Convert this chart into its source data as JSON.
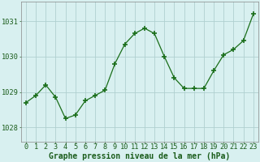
{
  "hours": [
    0,
    1,
    2,
    3,
    4,
    5,
    6,
    7,
    8,
    9,
    10,
    11,
    12,
    13,
    14,
    15,
    16,
    17,
    18,
    19,
    20,
    21,
    22,
    23
  ],
  "pressure": [
    1028.7,
    1028.9,
    1029.2,
    1028.85,
    1028.25,
    1028.35,
    1028.75,
    1028.9,
    1029.05,
    1029.8,
    1030.35,
    1030.65,
    1030.8,
    1030.65,
    1030.0,
    1029.4,
    1029.1,
    1029.1,
    1029.1,
    1029.6,
    1030.05,
    1030.2,
    1030.45,
    1031.2
  ],
  "line_color": "#1a6e1a",
  "marker_color": "#1a6e1a",
  "bg_color": "#d8f0f0",
  "grid_color": "#b0d0d0",
  "ylabel_ticks": [
    1028,
    1029,
    1030,
    1031
  ],
  "xlabel_label": "Graphe pression niveau de la mer (hPa)",
  "ylim": [
    1027.6,
    1031.55
  ],
  "xlim": [
    -0.5,
    23.5
  ],
  "label_fontsize": 7.0,
  "tick_fontsize": 6.2
}
